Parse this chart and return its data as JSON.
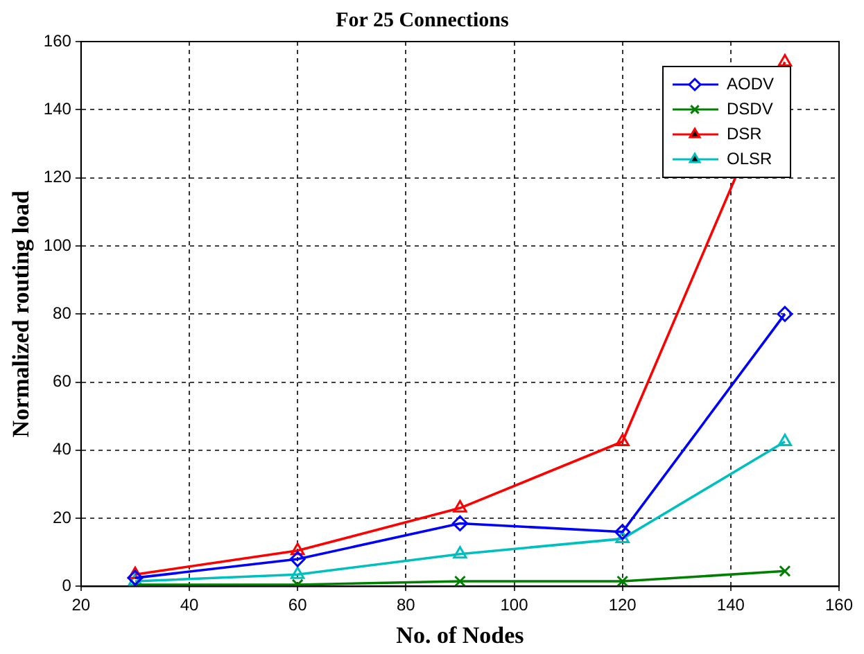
{
  "chart_data": {
    "type": "line",
    "title": "For 25 Connections",
    "xlabel": "No. of Nodes",
    "ylabel": "Normalized routing load",
    "x": [
      30,
      60,
      90,
      120,
      150
    ],
    "series": [
      {
        "name": "AODV",
        "color": "#0000ff",
        "marker": "diamond",
        "values": [
          2.5,
          8,
          18.5,
          16,
          80
        ]
      },
      {
        "name": "DSDV",
        "color": "#008000",
        "marker": "cross",
        "values": [
          0.5,
          0.5,
          1.5,
          1.5,
          4.5
        ]
      },
      {
        "name": "DSR",
        "color": "#ff0000",
        "marker": "triangle",
        "values": [
          3.5,
          10.5,
          23,
          42.5,
          154
        ]
      },
      {
        "name": "OLSR",
        "color": "#00bfbf",
        "marker": "triangle",
        "values": [
          1.5,
          3.5,
          9.5,
          14,
          42.5
        ]
      }
    ],
    "xlim": [
      20,
      160
    ],
    "xticks": [
      20,
      40,
      60,
      80,
      100,
      120,
      140,
      160
    ],
    "ylim": [
      0,
      160
    ],
    "yticks": [
      0,
      20,
      40,
      60,
      80,
      100,
      120,
      140,
      160
    ],
    "grid": true,
    "legend": "top right",
    "line_style": "solid"
  }
}
